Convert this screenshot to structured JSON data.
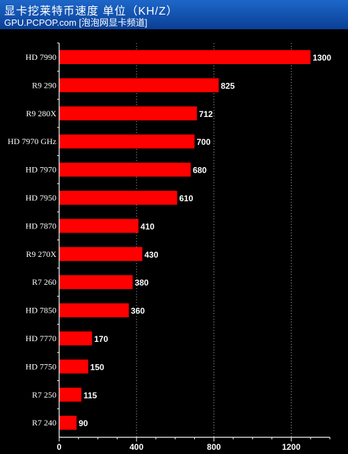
{
  "header": {
    "title": "显卡挖莱特币速度 单位（KH/Z）",
    "subtitle": "GPU.PCPOP.com [泡泡网显卡频道]"
  },
  "colors": {
    "background": "#000000",
    "bar": "#ff0000",
    "header_top": "#1d67c9",
    "header_bottom": "#0a3f96",
    "text": "#ffffff"
  },
  "chart_data": {
    "type": "bar",
    "orientation": "horizontal",
    "title": "显卡挖莱特币速度 单位（KH/Z）",
    "categories": [
      "HD 7990",
      "R9 290",
      "R9 280X",
      "HD 7970 GHz",
      "HD 7970",
      "HD 7950",
      "HD 7870",
      "R9 270X",
      "R7 260",
      "HD 7850",
      "HD 7770",
      "HD 7750",
      "R7 250",
      "R7 240"
    ],
    "values": [
      1300,
      825,
      712,
      700,
      680,
      610,
      410,
      430,
      380,
      360,
      170,
      150,
      115,
      90
    ],
    "xlim": [
      0,
      1400
    ],
    "xticks": [
      0,
      400,
      800,
      1200
    ],
    "xlabel": "",
    "ylabel": "",
    "grid": "vertical dotted",
    "legend": "none"
  }
}
